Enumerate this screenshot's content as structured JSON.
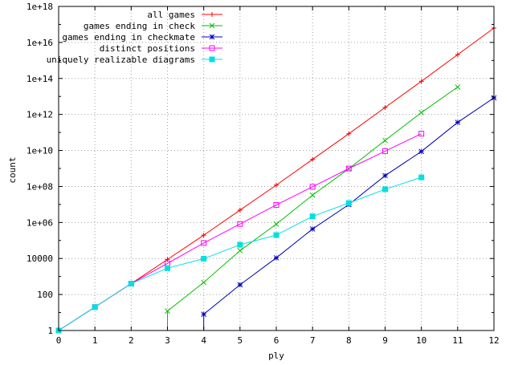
{
  "chart_data": {
    "type": "line",
    "xlabel": "ply",
    "ylabel": "count",
    "xlim": [
      0,
      12
    ],
    "ylim": [
      1,
      1e+18
    ],
    "yscale": "log",
    "grid": true,
    "legend_position": "top-left",
    "x_ticks": [
      "0",
      "1",
      "2",
      "3",
      "4",
      "5",
      "6",
      "7",
      "8",
      "9",
      "10",
      "11",
      "12"
    ],
    "y_ticks": [
      "1",
      "100",
      "10000",
      "1e+06",
      "1e+08",
      "1e+10",
      "1e+12",
      "1e+14",
      "1e+16",
      "1e+18"
    ],
    "series": [
      {
        "name": "all games",
        "color": "#ff0000",
        "marker": "plus",
        "x": [
          0,
          1,
          2,
          3,
          4,
          5,
          6,
          7,
          8,
          9,
          10,
          11,
          12
        ],
        "y": [
          1,
          20,
          400,
          8902,
          197281,
          4865609,
          119060324,
          3195901860,
          84998978956,
          2439530234167,
          69352859712417,
          2097651003696806,
          62854969236701747
        ]
      },
      {
        "name": "games ending in check",
        "color": "#00c000",
        "marker": "x",
        "x": [
          3,
          3,
          4,
          5,
          6,
          7,
          8,
          9,
          10,
          11
        ],
        "y": [
          1,
          12,
          469,
          27351,
          809099,
          33103848,
          968981593,
          36095901903,
          1273480904346,
          33304327000000
        ]
      },
      {
        "name": "games ending in checkmate",
        "color": "#0000c0",
        "marker": "star",
        "x": [
          4,
          4,
          5,
          6,
          7,
          8,
          9,
          10,
          11,
          12
        ],
        "y": [
          1,
          8,
          347,
          10828,
          435767,
          9852036,
          400191963,
          8790619155,
          362290010027,
          8361091508288
        ]
      },
      {
        "name": "distinct positions",
        "color": "#ff00ff",
        "marker": "square",
        "x": [
          0,
          1,
          2,
          3,
          4,
          5,
          6,
          7,
          8,
          9,
          10
        ],
        "y": [
          1,
          20,
          400,
          5362,
          72078,
          822518,
          9417681,
          96400068,
          988187354,
          9183421888,
          85375278064
        ]
      },
      {
        "name": "uniquely realizable diagrams",
        "color": "#00e0e0",
        "marker": "filled-square",
        "x": [
          0,
          1,
          2,
          3,
          4,
          5,
          6,
          7,
          8,
          9,
          10
        ],
        "y": [
          1,
          20,
          400,
          2900,
          9700,
          58000,
          200000,
          2200000,
          12000000,
          70000000,
          320000000
        ]
      }
    ]
  }
}
